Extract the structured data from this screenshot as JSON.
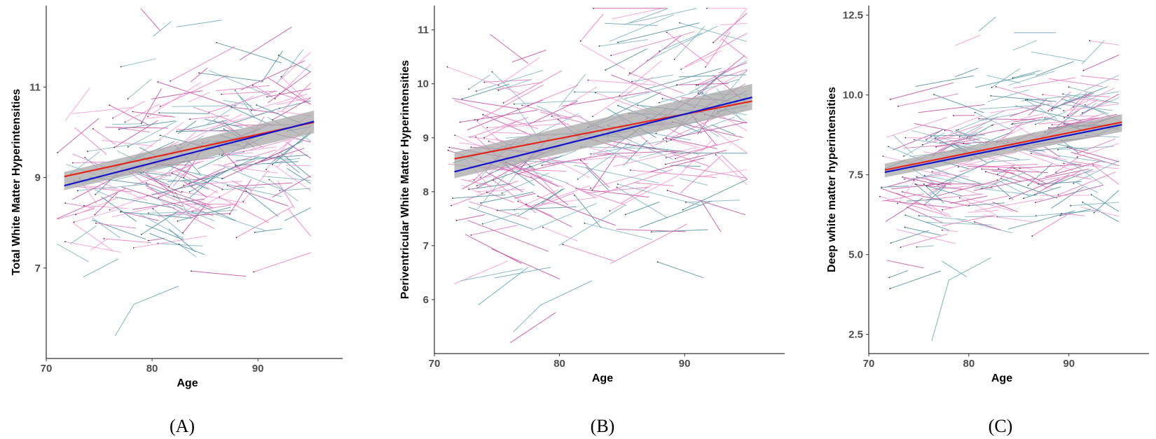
{
  "figure": {
    "trend_colors": {
      "red": "#e3261c",
      "blue": "#1414c8",
      "ci_band": "#a8a8a8"
    },
    "trajectory_colors": [
      "#e67ac0",
      "#4f8f9e",
      "#c24fa0",
      "#7fb3c0",
      "#f39ad3"
    ]
  },
  "chart_data": [
    {
      "type": "line",
      "panel_label": "(A)",
      "xlabel": "Age",
      "ylabel": "Total White Matter Hyperintensities",
      "xlim": [
        70,
        98
      ],
      "ylim": [
        5.0,
        12.8
      ],
      "x_ticks": [
        70,
        80,
        90
      ],
      "y_ticks": [
        7,
        9,
        11
      ],
      "grid": false,
      "legend": "none",
      "series": [
        {
          "color": "red",
          "x": [
            71.7,
            95.3
          ],
          "y": [
            9.02,
            10.22
          ]
        },
        {
          "color": "blue",
          "x": [
            71.7,
            95.3
          ],
          "y": [
            8.82,
            10.24
          ]
        }
      ],
      "ci_band": {
        "x": [
          71.7,
          95.3
        ],
        "lower": [
          8.72,
          9.98
        ],
        "upper": [
          9.12,
          10.48
        ]
      },
      "trajectories": {
        "count": 260,
        "seed": 11,
        "x_range": [
          71,
          95
        ],
        "y_center_at_70": 8.65,
        "slope": 0.06,
        "y_sd": 1.0,
        "outliers": [
          {
            "x": [
              76.5,
              78.3,
              82.5
            ],
            "y": [
              5.5,
              6.2,
              6.6
            ]
          },
          {
            "x": [
              82.3,
              86.6
            ],
            "y": [
              12.33,
              12.48
            ]
          },
          {
            "x": [
              80.1,
              81.8
            ],
            "y": [
              12.12,
              12.45
            ]
          },
          {
            "x": [
              73.5,
              76.8
            ],
            "y": [
              6.8,
              7.2
            ]
          }
        ]
      }
    },
    {
      "type": "line",
      "panel_label": "(B)",
      "xlabel": "Age",
      "ylabel": "Periventricular White Matter Hyperintensities",
      "xlim": [
        70,
        98
      ],
      "ylim": [
        5.0,
        11.45
      ],
      "x_ticks": [
        70,
        80,
        90
      ],
      "y_ticks": [
        6,
        7,
        8,
        9,
        10,
        11
      ],
      "grid": false,
      "legend": "none",
      "series": [
        {
          "color": "red",
          "x": [
            71.6,
            95.4
          ],
          "y": [
            8.61,
            9.68
          ]
        },
        {
          "color": "blue",
          "x": [
            71.6,
            95.4
          ],
          "y": [
            8.37,
            9.75
          ]
        }
      ],
      "ci_band": {
        "x": [
          71.6,
          95.4
        ],
        "lower": [
          8.25,
          9.52
        ],
        "upper": [
          8.73,
          10.0
        ]
      },
      "trajectories": {
        "count": 270,
        "seed": 23,
        "x_range": [
          71,
          95
        ],
        "y_center_at_70": 8.35,
        "slope": 0.05,
        "y_sd": 0.95,
        "outliers": [
          {
            "x": [
              76.3,
              78.5,
              82.6
            ],
            "y": [
              5.4,
              5.9,
              6.35
            ]
          },
          {
            "x": [
              73.5,
              77.5
            ],
            "y": [
              5.9,
              6.6
            ]
          },
          {
            "x": [
              83.6,
              87.8
            ],
            "y": [
              11.12,
              11.08
            ]
          },
          {
            "x": [
              74.8,
              79.3
            ],
            "y": [
              6.4,
              6.6
            ]
          }
        ]
      }
    },
    {
      "type": "line",
      "panel_label": "(C)",
      "xlabel": "Age",
      "ylabel": "Deep white matter hyperintensities",
      "xlim": [
        70,
        98
      ],
      "ylim": [
        1.9,
        12.8
      ],
      "x_ticks": [
        70,
        80,
        90
      ],
      "y_ticks": [
        2.5,
        5.0,
        7.5,
        10.0,
        12.5
      ],
      "y_tick_labels": [
        "2.5",
        "5.0",
        "7.5",
        "10.0",
        "12.5"
      ],
      "grid": false,
      "legend": "none",
      "series": [
        {
          "color": "red",
          "x": [
            71.6,
            95.3
          ],
          "y": [
            7.65,
            9.15
          ]
        },
        {
          "color": "blue",
          "x": [
            71.6,
            95.3
          ],
          "y": [
            7.58,
            9.07
          ]
        }
      ],
      "ci_band": {
        "x": [
          71.6,
          95.3
        ],
        "lower": [
          7.42,
          8.85
        ],
        "upper": [
          7.85,
          9.4
        ]
      },
      "trajectories": {
        "count": 270,
        "seed": 37,
        "x_range": [
          71,
          95
        ],
        "y_center_at_70": 7.3,
        "slope": 0.07,
        "y_sd": 1.2,
        "outliers": [
          {
            "x": [
              76.3,
              78.0,
              82.2
            ],
            "y": [
              2.3,
              4.2,
              4.9
            ]
          },
          {
            "x": [
              84.5,
              88.7
            ],
            "y": [
              11.95,
              11.95
            ]
          },
          {
            "x": [
              81.0,
              82.7
            ],
            "y": [
              12.0,
              12.45
            ]
          },
          {
            "x": [
              77.3,
              79.8
            ],
            "y": [
              4.8,
              4.3
            ]
          }
        ]
      }
    }
  ]
}
